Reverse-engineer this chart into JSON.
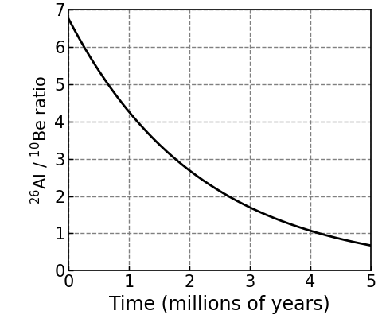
{
  "xlabel": "Time (millions of years)",
  "xlim": [
    0,
    5
  ],
  "ylim": [
    0,
    7
  ],
  "xticks": [
    0,
    1,
    2,
    3,
    4,
    5
  ],
  "yticks": [
    0,
    1,
    2,
    3,
    4,
    5,
    6,
    7
  ],
  "initial_value": 6.75,
  "decay_constant": 0.46,
  "line_color": "#000000",
  "line_width": 2.0,
  "background_color": "#ffffff",
  "grid_color": "#808080",
  "grid_linestyle": "--",
  "grid_linewidth": 1.0,
  "xlabel_fontsize": 17,
  "ylabel_fontsize": 15,
  "tick_fontsize": 15,
  "spine_linewidth": 1.2
}
